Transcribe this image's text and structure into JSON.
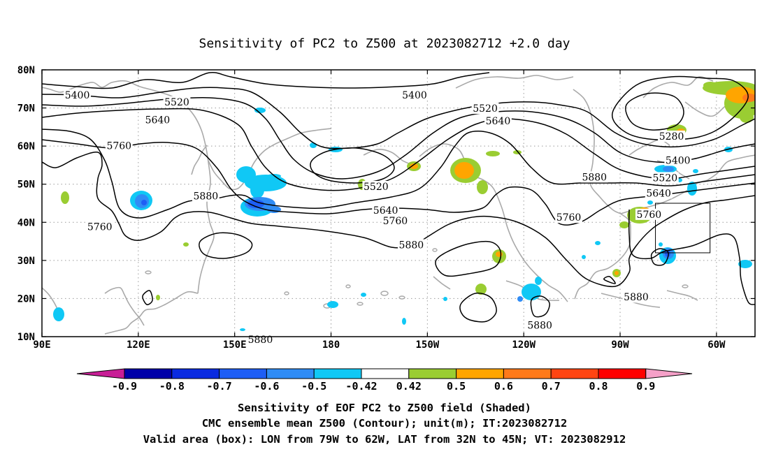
{
  "title": "Sensitivity of PC2 to Z500 at 2023082712 +2.0 day",
  "lon_ticks": [
    "90E",
    "120E",
    "150E",
    "180",
    "150W",
    "120W",
    "90W",
    "60W"
  ],
  "lat_ticks": [
    "80N",
    "70N",
    "60N",
    "50N",
    "40N",
    "30N",
    "20N",
    "10N"
  ],
  "domain": {
    "lon": [
      90,
      312
    ],
    "lat": [
      10,
      80
    ]
  },
  "valid_box": {
    "lon": [
      281,
      298
    ],
    "lat": [
      32,
      45
    ]
  },
  "contour_labels": [
    {
      "text": "5400",
      "lon": 101,
      "lat": 73.4
    },
    {
      "text": "5520",
      "lon": 132,
      "lat": 71.6
    },
    {
      "text": "5640",
      "lon": 126,
      "lat": 66.9
    },
    {
      "text": "5760",
      "lon": 114,
      "lat": 60.1
    },
    {
      "text": "5880",
      "lon": 141,
      "lat": 46.9
    },
    {
      "text": "5760",
      "lon": 108,
      "lat": 38.9
    },
    {
      "text": "5400",
      "lon": 206,
      "lat": 73.4
    },
    {
      "text": "5520",
      "lon": 228,
      "lat": 69.9
    },
    {
      "text": "5640",
      "lon": 232,
      "lat": 66.6
    },
    {
      "text": "5520",
      "lon": 194,
      "lat": 49.4
    },
    {
      "text": "5640",
      "lon": 197,
      "lat": 43.2
    },
    {
      "text": "5760",
      "lon": 200,
      "lat": 40.4
    },
    {
      "text": "5880",
      "lon": 205,
      "lat": 34.1
    },
    {
      "text": "5760",
      "lon": 254,
      "lat": 41.3
    },
    {
      "text": "5880",
      "lon": 262,
      "lat": 51.9
    },
    {
      "text": "5280",
      "lon": 286,
      "lat": 62.6
    },
    {
      "text": "5400",
      "lon": 288,
      "lat": 56.3
    },
    {
      "text": "5520",
      "lon": 284,
      "lat": 51.7
    },
    {
      "text": "5640",
      "lon": 282,
      "lat": 47.7
    },
    {
      "text": "5760",
      "lon": 279,
      "lat": 42.1
    },
    {
      "text": "5880",
      "lon": 275,
      "lat": 20.4
    },
    {
      "text": "5880",
      "lon": 245,
      "lat": 13.0
    },
    {
      "text": "5880",
      "lon": 158,
      "lat": 9.3
    }
  ],
  "colorbar": {
    "labels": [
      "-0.9",
      "-0.8",
      "-0.7",
      "-0.6",
      "-0.5",
      "-0.42",
      "0.42",
      "0.5",
      "0.6",
      "0.7",
      "0.8",
      "0.9"
    ],
    "colors": [
      "#0000a8",
      "#0a2be0",
      "#1e5ef5",
      "#2f8cf5",
      "#10c8f5",
      "#ffffff",
      "#9acd32",
      "#ffa500",
      "#ff7a1a",
      "#ff4512",
      "#ff0000"
    ],
    "low_arrow": "#c81e96",
    "high_arrow": "#f5a0c8"
  },
  "captions": [
    "Sensitivity of EOF PC2 to Z500 field (Shaded)",
    "CMC ensemble mean Z500 (Contour); unit(m); IT:2023082712",
    "Valid area (box): LON from 79W to 62W, LAT from 32N to 45N; VT: 2023082912"
  ]
}
